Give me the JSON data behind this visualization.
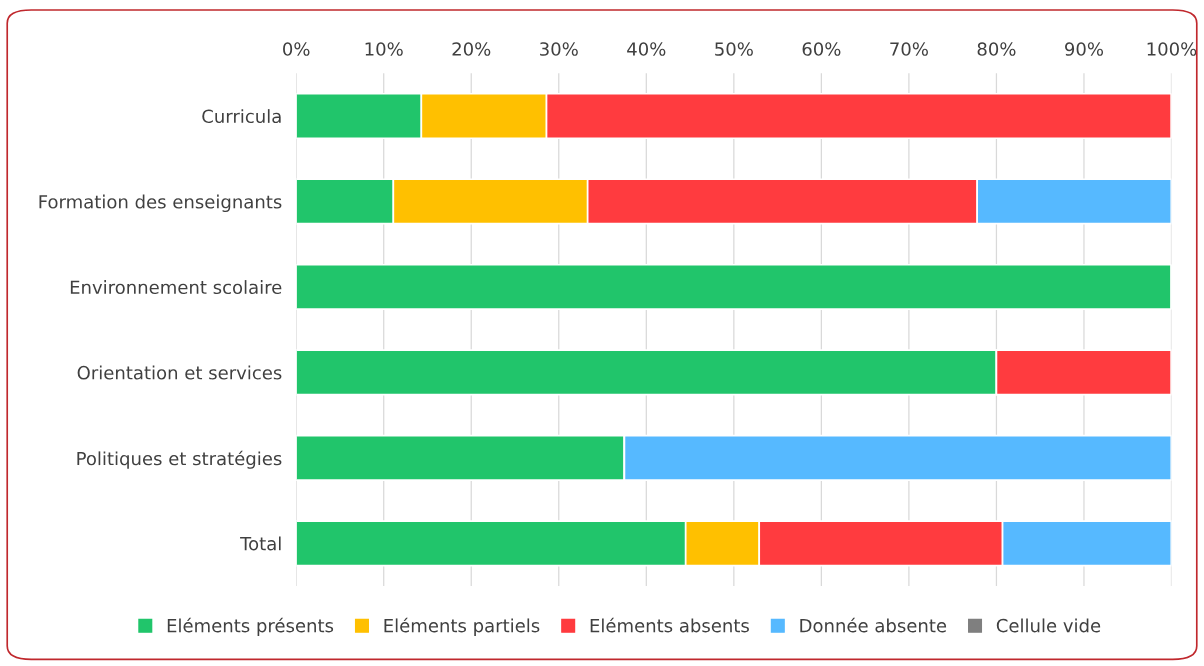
{
  "chart_data": {
    "type": "bar",
    "orientation": "horizontal",
    "stacked": true,
    "categories": [
      "Curricula",
      "Formation des enseignants",
      "Environnement scolaire",
      "Orientation et services",
      "Politiques et stratégies",
      "Total"
    ],
    "series": [
      {
        "name": "Eléments présents",
        "color": "#21c56b",
        "values": [
          14.3,
          11.1,
          100,
          80,
          37.5,
          44.5
        ]
      },
      {
        "name": "Eléments partiels",
        "color": "#ffc000",
        "values": [
          14.3,
          22.2,
          0,
          0,
          0,
          8.4
        ]
      },
      {
        "name": "Eléments absents",
        "color": "#ff3b3f",
        "values": [
          71.4,
          44.5,
          0,
          20,
          0,
          27.8
        ]
      },
      {
        "name": "Donnée absente",
        "color": "#56b9ff",
        "values": [
          0,
          22.2,
          0,
          0,
          62.5,
          19.3
        ]
      },
      {
        "name": "Cellule vide",
        "color": "#7f7f7f",
        "values": [
          0,
          0,
          0,
          0,
          0,
          0
        ]
      }
    ],
    "xlim": [
      0,
      100
    ],
    "xticks": [
      {
        "value": 0,
        "label": "0%"
      },
      {
        "value": 10,
        "label": "10%"
      },
      {
        "value": 20,
        "label": "20%"
      },
      {
        "value": 30,
        "label": "30%"
      },
      {
        "value": 40,
        "label": "40%"
      },
      {
        "value": 50,
        "label": "50%"
      },
      {
        "value": 60,
        "label": "60%"
      },
      {
        "value": 70,
        "label": "70%"
      },
      {
        "value": 80,
        "label": "80%"
      },
      {
        "value": 90,
        "label": "90%"
      },
      {
        "value": 100,
        "label": "100%"
      }
    ],
    "grid": "x",
    "legend": "bottom"
  }
}
